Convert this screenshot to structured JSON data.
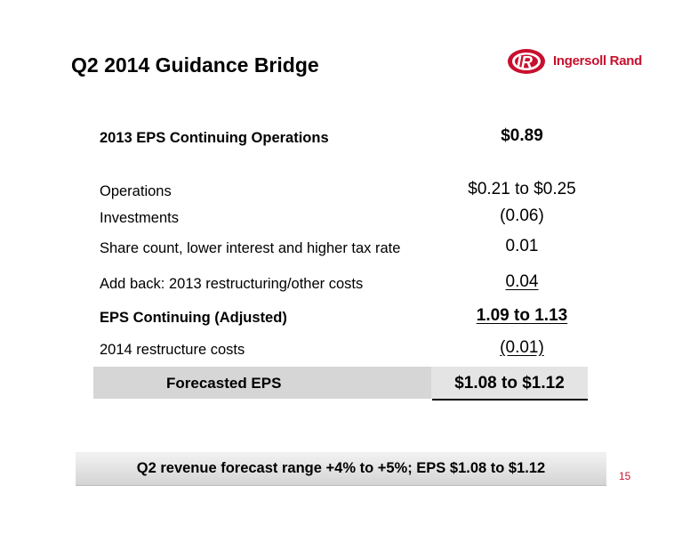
{
  "slide": {
    "title": "Q2 2014 Guidance Bridge",
    "logo_text": "Ingersoll Rand",
    "brand_color": "#c8102e",
    "page_number": "15"
  },
  "table": {
    "rows": [
      {
        "label": "2013 EPS Continuing Operations",
        "value": "$0.89"
      },
      {
        "label": "Operations",
        "value": "$0.21 to $0.25"
      },
      {
        "label": "Investments",
        "value": "(0.06)"
      },
      {
        "label": "Share count, lower interest and higher tax rate",
        "value": "0.01"
      },
      {
        "label": "Add back: 2013 restructuring/other costs",
        "value": "0.04"
      },
      {
        "label": "EPS Continuing (Adjusted)",
        "value": "1.09 to 1.13"
      },
      {
        "label": "2014 restructure costs",
        "value": "(0.01)"
      }
    ],
    "forecast": {
      "label": "Forecasted EPS",
      "value": "$1.08 to $1.12"
    }
  },
  "banner": {
    "text": "Q2 revenue forecast range +4% to +5%; EPS $1.08 to $1.12"
  }
}
